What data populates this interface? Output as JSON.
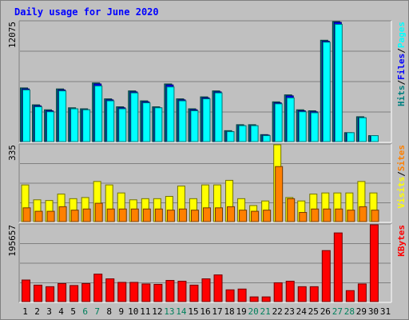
{
  "chart_data": {
    "type": "bar",
    "title": "Daily usage for June 2020",
    "categories": [
      "1",
      "2",
      "3",
      "4",
      "5",
      "6",
      "7",
      "8",
      "9",
      "10",
      "11",
      "12",
      "13",
      "14",
      "15",
      "16",
      "17",
      "18",
      "19",
      "20",
      "21",
      "22",
      "23",
      "24",
      "25",
      "26",
      "27",
      "28",
      "29",
      "30",
      "31"
    ],
    "weekend_days": [
      "6",
      "7",
      "13",
      "14",
      "20",
      "21",
      "27",
      "28"
    ],
    "panels": [
      {
        "id": "hits-files",
        "y_max_label": "12075",
        "ylim": [
          0,
          12075
        ],
        "ylabel_parts": [
          {
            "text": "Hits",
            "color": "#008080"
          },
          {
            "text": "/",
            "color": "#000000"
          },
          {
            "text": "Files",
            "color": "#0000ff"
          },
          {
            "text": "/",
            "color": "#000000"
          },
          {
            "text": "Pages",
            "color": "#00ffff"
          }
        ],
        "series": [
          {
            "name": "Hits",
            "color": "#008080",
            "values": [
              5400,
              3700,
              3200,
              5300,
              3400,
              3300,
              5900,
              4300,
              3500,
              5100,
              4100,
              3500,
              5800,
              4300,
              3300,
              4500,
              5100,
              1100,
              1700,
              1700,
              700,
              4000,
              4700,
              3200,
              3100,
              10200,
              12075,
              900,
              2500,
              600,
              0
            ]
          },
          {
            "name": "Files",
            "color": "#0000ff",
            "values": [
              5300,
              3600,
              3100,
              5200,
              3300,
              3200,
              5800,
              4200,
              3400,
              5000,
              4000,
              3400,
              5700,
              4200,
              3200,
              4400,
              5000,
              1000,
              1600,
              1600,
              650,
              3900,
              4600,
              3100,
              3000,
              10100,
              12000,
              850,
              2400,
              550,
              0
            ]
          },
          {
            "name": "Pages",
            "color": "#00ffff",
            "values": [
              5200,
              3500,
              3000,
              5100,
              3300,
              3200,
              5600,
              4100,
              3300,
              4900,
              3900,
              3400,
              5500,
              4100,
              3100,
              4300,
              4900,
              1000,
              1600,
              1600,
              600,
              3800,
              4400,
              3000,
              2900,
              10000,
              11800,
              900,
              2400,
              600,
              0
            ]
          }
        ]
      },
      {
        "id": "visits-sites",
        "y_max_label": "335",
        "ylim": [
          0,
          335
        ],
        "ylabel_parts": [
          {
            "text": "Visits",
            "color": "#ffff00"
          },
          {
            "text": "/",
            "color": "#000000"
          },
          {
            "text": "Sites",
            "color": "#ff8000"
          }
        ],
        "series": [
          {
            "name": "Visits",
            "color": "#ffff00",
            "values": [
              160,
              95,
              92,
              120,
              100,
              105,
              175,
              160,
              125,
              95,
              100,
              100,
              110,
              155,
              100,
              160,
              160,
              180,
              100,
              70,
              90,
              335,
              105,
              90,
              120,
              125,
              125,
              125,
              175,
              125,
              0
            ]
          },
          {
            "name": "Sites",
            "color": "#ff8000",
            "values": [
              60,
              45,
              45,
              65,
              50,
              55,
              80,
              55,
              55,
              55,
              55,
              55,
              50,
              55,
              50,
              60,
              60,
              65,
              50,
              45,
              50,
              240,
              100,
              40,
              55,
              55,
              55,
              50,
              65,
              50,
              0
            ]
          }
        ]
      },
      {
        "id": "kbytes",
        "y_max_label": "195657",
        "ylim": [
          0,
          195657
        ],
        "ylabel_parts": [
          {
            "text": "KBytes",
            "color": "#ff0000"
          }
        ],
        "series": [
          {
            "name": "KBytes",
            "color": "#ff0000",
            "values": [
              55000,
              42000,
              38000,
              46000,
              41000,
              46000,
              70000,
              58000,
              49000,
              49000,
              45000,
              44000,
              54000,
              52000,
              42000,
              58000,
              68000,
              30000,
              32000,
              12000,
              12000,
              48000,
              52000,
              38000,
              38000,
              130000,
              175000,
              28000,
              45000,
              195657,
              0
            ]
          }
        ]
      }
    ]
  }
}
